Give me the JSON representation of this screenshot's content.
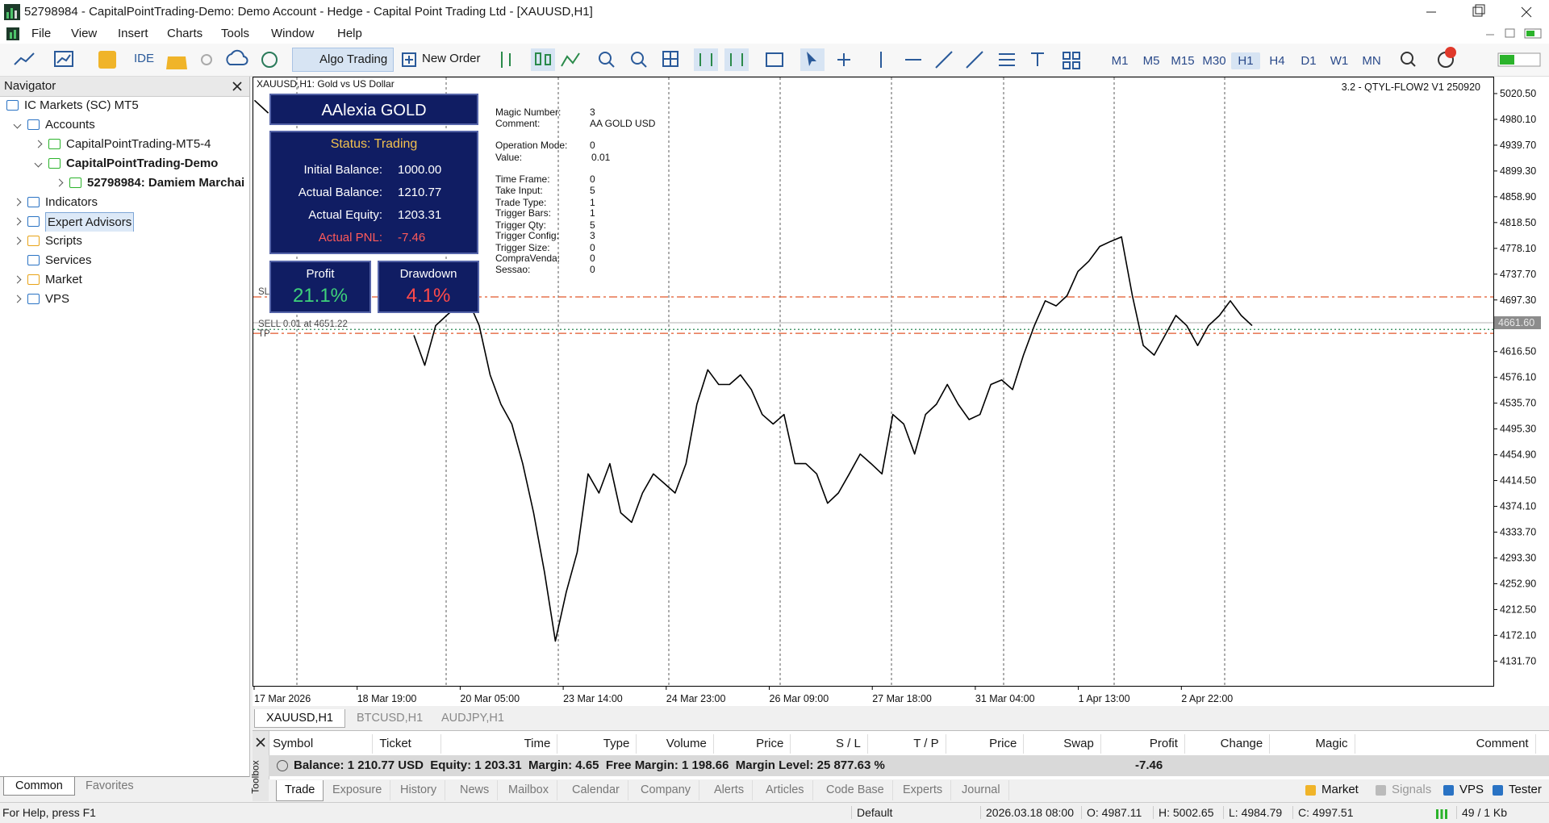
{
  "window": {
    "title": "52798984 - CapitalPointTrading-Demo: Demo Account - Hedge - Capital Point Trading Ltd - [XAUUSD,H1]"
  },
  "menu": [
    "File",
    "View",
    "Insert",
    "Charts",
    "Tools",
    "Window",
    "Help"
  ],
  "toolbar": {
    "ide": "IDE",
    "algo_trading": "Algo Trading",
    "new_order": "New Order",
    "timeframes": [
      "M1",
      "M5",
      "M15",
      "M30",
      "H1",
      "H4",
      "D1",
      "W1",
      "MN"
    ]
  },
  "navigator": {
    "title": "Navigator",
    "tree": [
      "IC Markets (SC) MT5",
      "Accounts",
      "CapitalPointTrading-MT5-4",
      "CapitalPointTrading-Demo",
      "52798984: Damiem Marchai",
      "Indicators",
      "Expert Advisors",
      "Scripts",
      "Services",
      "Market",
      "VPS"
    ],
    "tabs": [
      "Common",
      "Favorites"
    ]
  },
  "ea_label": "3.2 - QTYL-FLOW2 V1 250920",
  "ea_panel": {
    "name": "AAlexia GOLD",
    "status": "Status: Trading",
    "rows": [
      {
        "label": "Initial Balance:",
        "value": "1000.00"
      },
      {
        "label": "Actual Balance:",
        "value": "1210.77"
      },
      {
        "label": "Actual Equity:",
        "value": "1203.31"
      },
      {
        "label": "Actual PNL:",
        "value": "-7.46"
      }
    ],
    "profit": {
      "label": "Profit",
      "value": "21.1%"
    },
    "drawdown": {
      "label": "Drawdown",
      "value": "4.1%"
    }
  },
  "ea_info": [
    {
      "key": "Magic Number:",
      "value": "3"
    },
    {
      "key": "Comment:",
      "value": "AA GOLD USD"
    },
    {
      "key": "Operation Mode:",
      "value": "0"
    },
    {
      "key": "Value:",
      "value": "0.01"
    },
    {
      "key": "Time Frame:",
      "value": "0"
    },
    {
      "key": "Take Input:",
      "value": "5"
    },
    {
      "key": "Trade Type:",
      "value": "1"
    },
    {
      "key": "Trigger Bars:",
      "value": "1"
    },
    {
      "key": "Trigger Qty:",
      "value": "5"
    },
    {
      "key": "Trigger Config:",
      "value": "3"
    },
    {
      "key": "Trigger Size:",
      "value": "0"
    },
    {
      "key": "CompraVenda:",
      "value": "0"
    },
    {
      "key": "Sessao:",
      "value": "0"
    }
  ],
  "chart_data": {
    "type": "line",
    "title": "XAUUSD,H1:  Gold vs US Dollar",
    "color": "#000000",
    "values": [
      5010,
      4990,
      null,
      null,
      null,
      null,
      null,
      null,
      null,
      null,
      null,
      null,
      4642,
      4595,
      4657,
      4673,
      4688,
      4696,
      4657,
      4580,
      4534,
      4503,
      4441,
      4364,
      4271,
      4163,
      4240,
      4302,
      4425,
      4395,
      4441,
      4364,
      4349,
      4395,
      4425,
      4410,
      4395,
      4441,
      4534,
      4588,
      4565,
      4565,
      4580,
      4557,
      4518,
      4503,
      4518,
      4441,
      4441,
      4425,
      4379,
      4395,
      4425,
      4456,
      4441,
      4425,
      4518,
      4503,
      4456,
      4518,
      4534,
      4565,
      4534,
      4510,
      4518,
      4565,
      4572,
      4557,
      4611,
      4657,
      4696,
      4688,
      4704,
      4742,
      4758,
      4781,
      4789,
      4796,
      4704,
      4626,
      4611,
      4642,
      4673,
      4657,
      4626,
      4657,
      4673,
      4696,
      4673,
      4657
    ],
    "ylim": [
      4093,
      5047
    ],
    "yticks": [
      {
        "value": 5020.5,
        "label": "5020.50"
      },
      {
        "value": 4980.1,
        "label": "4980.10"
      },
      {
        "value": 4939.7,
        "label": "4939.70"
      },
      {
        "value": 4899.3,
        "label": "4899.30"
      },
      {
        "value": 4858.9,
        "label": "4858.90"
      },
      {
        "value": 4818.5,
        "label": "4818.50"
      },
      {
        "value": 4778.1,
        "label": "4778.10"
      },
      {
        "value": 4737.7,
        "label": "4737.70"
      },
      {
        "value": 4697.3,
        "label": "4697.30"
      },
      {
        "value": 4616.5,
        "label": "4616.50"
      },
      {
        "value": 4576.1,
        "label": "4576.10"
      },
      {
        "value": 4535.7,
        "label": "4535.70"
      },
      {
        "value": 4495.3,
        "label": "4495.30"
      },
      {
        "value": 4454.9,
        "label": "4454.90"
      },
      {
        "value": 4414.5,
        "label": "4414.50"
      },
      {
        "value": 4374.1,
        "label": "4374.10"
      },
      {
        "value": 4333.7,
        "label": "4333.70"
      },
      {
        "value": 4293.3,
        "label": "4293.30"
      },
      {
        "value": 4252.9,
        "label": "4252.90"
      },
      {
        "value": 4212.5,
        "label": "4212.50"
      },
      {
        "value": 4172.1,
        "label": "4172.10"
      },
      {
        "value": 4131.7,
        "label": "4131.70"
      }
    ],
    "x_labels": [
      "17 Mar 2026",
      "18 Mar 19:00",
      "20 Mar 05:00",
      "23 Mar 14:00",
      "24 Mar 23:00",
      "26 Mar 09:00",
      "27 Mar 18:00",
      "31 Mar 04:00",
      "1 Apr 13:00",
      "2 Apr 22:00"
    ],
    "current_price": {
      "value": 4661.6,
      "label": "4661.60"
    },
    "levels": {
      "sl": 4702,
      "entry": 4651.22,
      "tp": 4645
    },
    "level_labels": {
      "sl": "SL",
      "entry": "SELL 0.01 at 4651.22",
      "tp": "TP"
    }
  },
  "chart_tabs": [
    "XAUUSD,H1",
    "BTCUSD,H1",
    "AUDJPY,H1"
  ],
  "toolbox": {
    "label": "Toolbox",
    "columns": [
      "Symbol",
      "Ticket",
      "Time",
      "Type",
      "Volume",
      "Price",
      "S / L",
      "T / P",
      "Price",
      "Swap",
      "Profit",
      "Change",
      "Magic",
      "Comment"
    ],
    "summary": "Balance: 1 210.77 USD  Equity: 1 203.31  Margin: 4.65  Free Margin: 1 198.66  Margin Level: 25 877.63 %",
    "summary_profit": "-7.46",
    "tabs": [
      "Trade",
      "Exposure",
      "History",
      "News",
      "Mailbox",
      "Calendar",
      "Company",
      "Alerts",
      "Articles",
      "Code Base",
      "Experts",
      "Journal"
    ],
    "right_tabs": [
      "Market",
      "Signals",
      "VPS",
      "Tester"
    ]
  },
  "status_bar": {
    "help": "For Help, press F1",
    "profile": "Default",
    "time": "2026.03.18 08:00",
    "open": "O: 4987.11",
    "high": "H: 5002.65",
    "low": "L: 4984.79",
    "close": "C: 4997.51",
    "traffic": "49 / 1 Kb"
  }
}
